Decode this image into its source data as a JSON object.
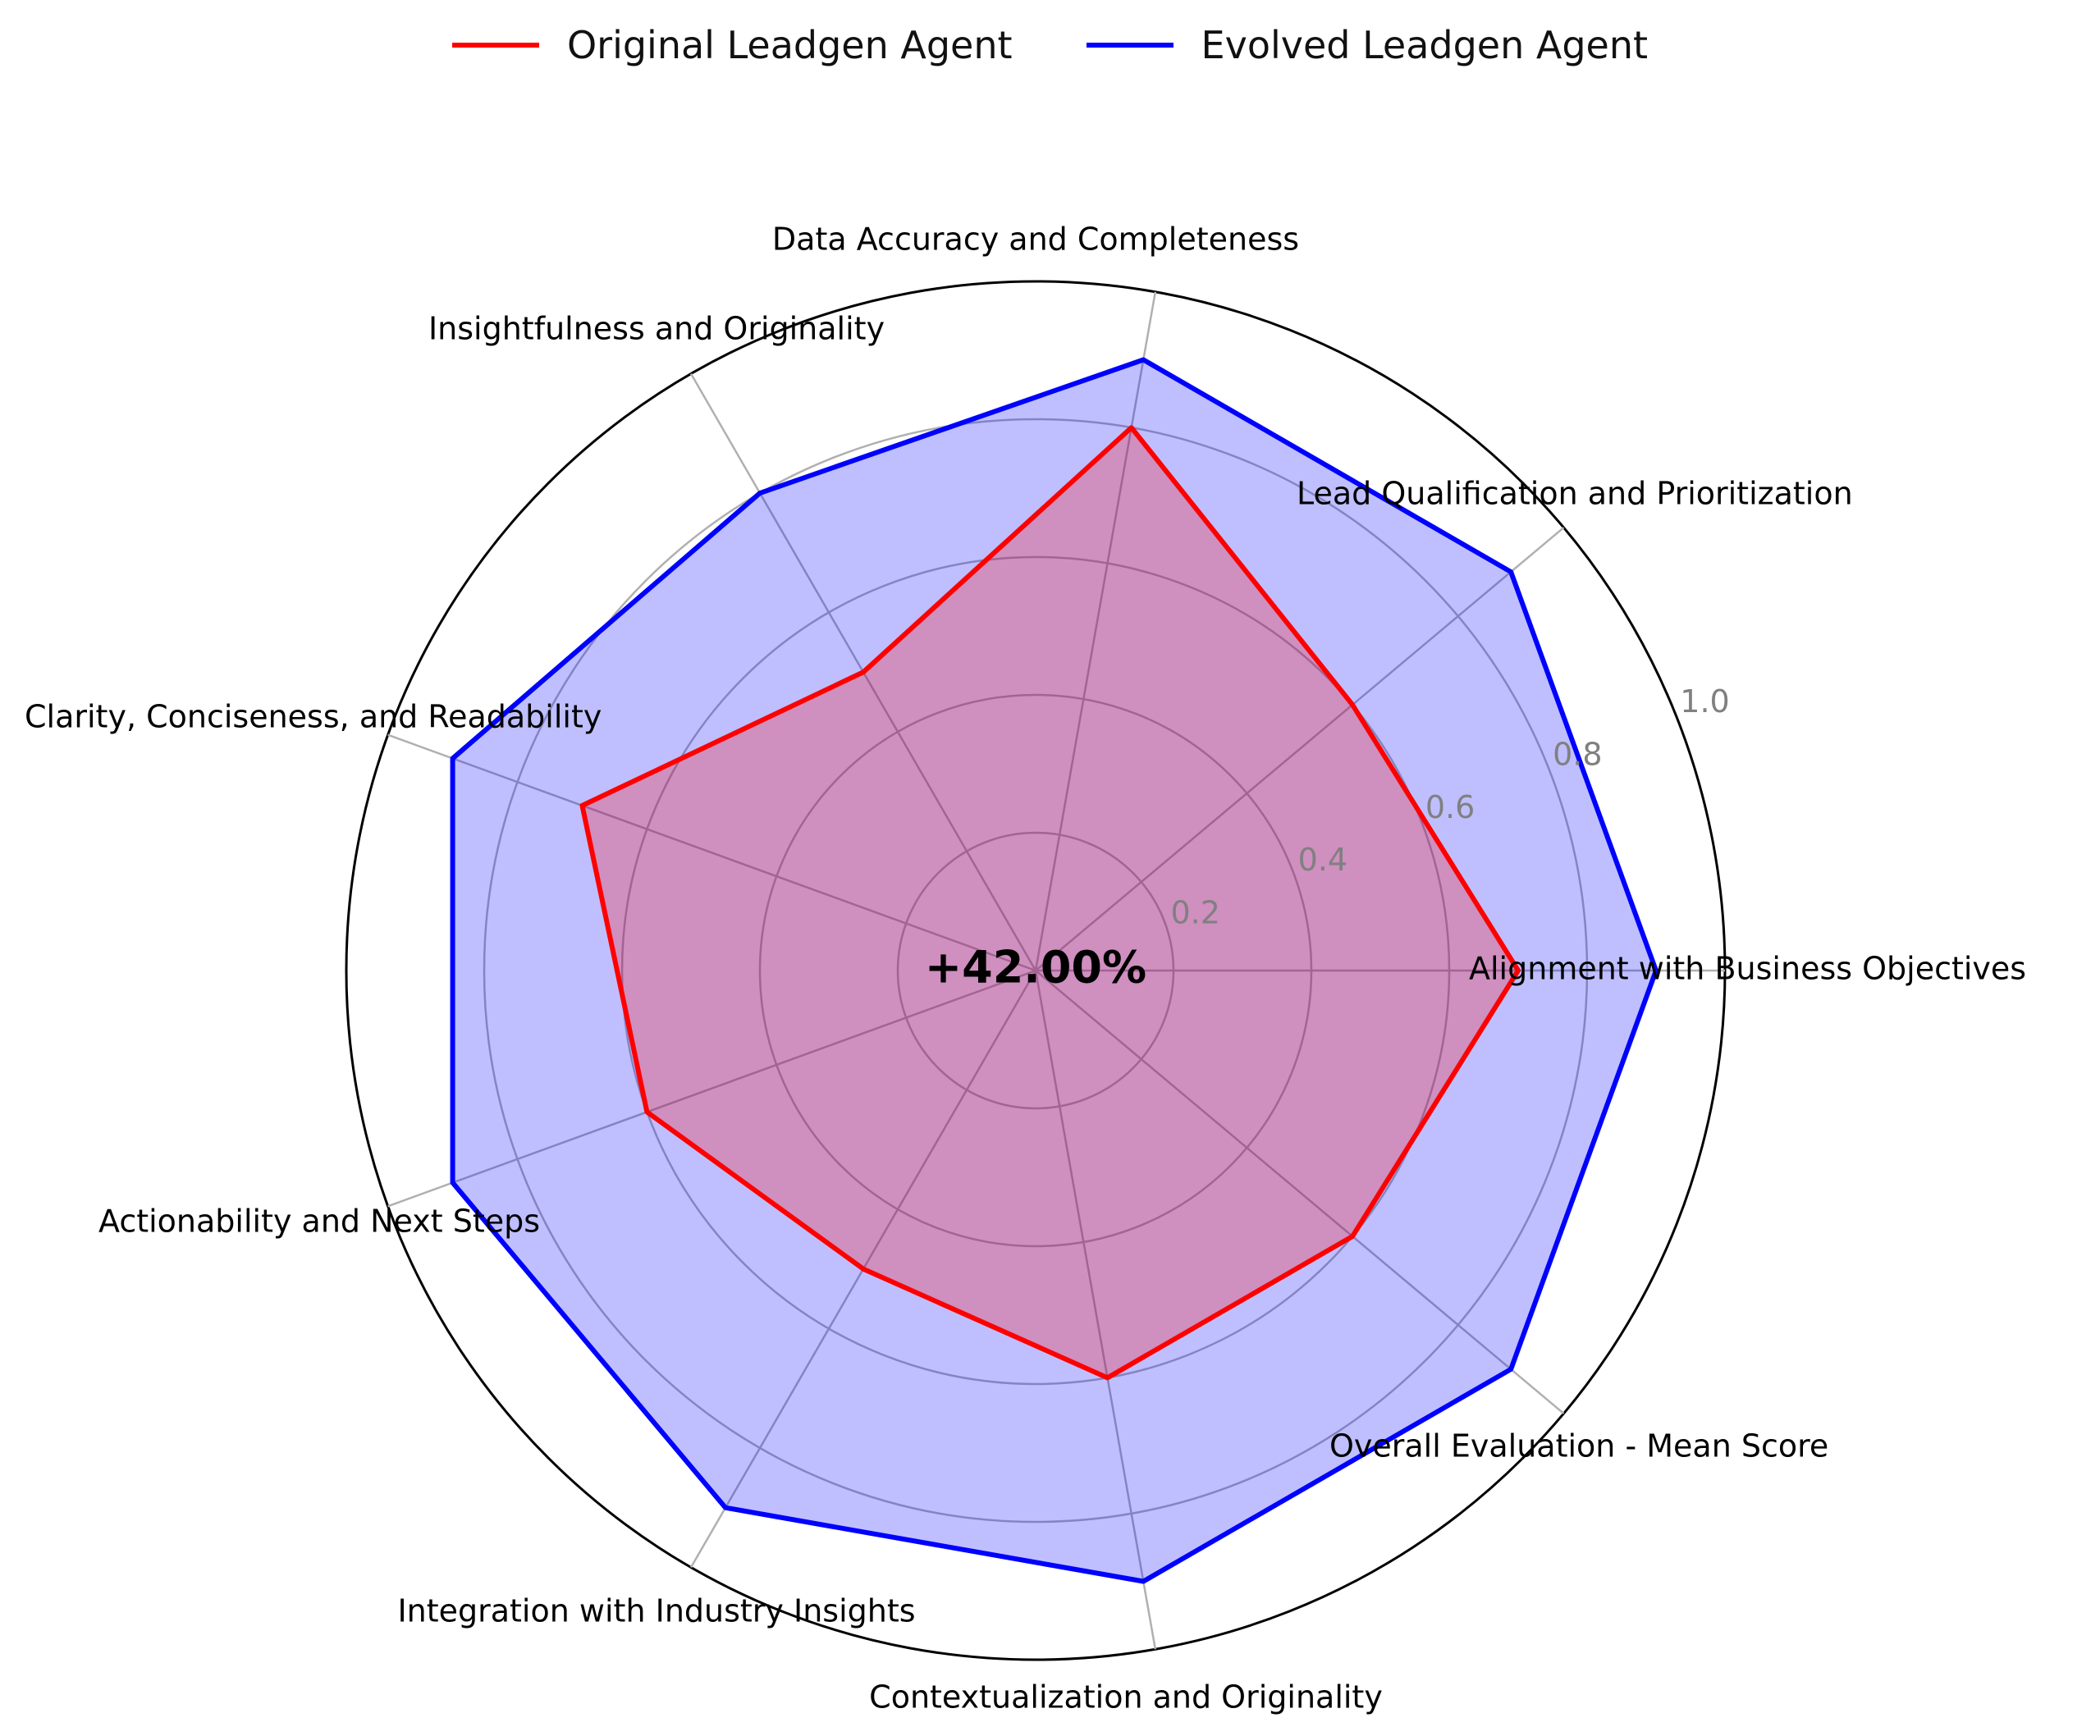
{
  "chart_data": {
    "type": "radar",
    "categories": [
      "Alignment with Business Objectives",
      "Lead Qualification and Prioritization",
      "Data Accuracy and Completeness",
      "Insightfulness and Originality",
      "Clarity, Conciseness, and Readability",
      "Actionability and Next Steps",
      "Integration with Industry Insights",
      "Contextualization and Originality",
      "Overall Evaluation - Mean Score"
    ],
    "series": [
      {
        "name": "Original Leadgen Agent",
        "values": [
          0.7,
          0.6,
          0.8,
          0.5,
          0.7,
          0.6,
          0.5,
          0.6,
          0.6
        ],
        "color": "#ff0000"
      },
      {
        "name": "Evolved Leadgen Agent",
        "values": [
          0.9,
          0.9,
          0.9,
          0.8,
          0.9,
          0.9,
          0.9,
          0.9,
          0.9
        ],
        "color": "#0000ff"
      }
    ],
    "rlim": [
      0,
      1.0
    ],
    "rticks": [
      "0.2",
      "0.4",
      "0.6",
      "0.8",
      "1.0"
    ],
    "center_label": "+42.00%",
    "grid": true,
    "legend_position": "top-center"
  }
}
